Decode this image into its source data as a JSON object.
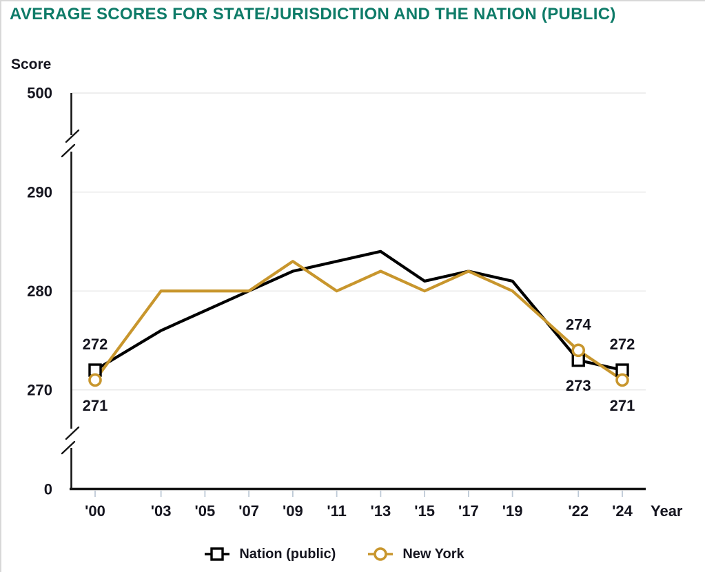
{
  "title": "AVERAGE SCORES FOR STATE/JURISDICTION AND THE NATION (PUBLIC)",
  "colors": {
    "title_accent": "#0e7b68",
    "nation_series": "#000000",
    "state_series": "#c8962d",
    "gridline": "#e9e9e9",
    "axis": "#161616",
    "x_tick_mark": "#bdc9d6",
    "text": "#15151f"
  },
  "chart_data": {
    "type": "line",
    "title": "AVERAGE SCORES FOR STATE/JURISDICTION AND THE NATION (PUBLIC)",
    "ylabel": "Score",
    "xlabel": "Year",
    "x": [
      2000,
      2003,
      2005,
      2007,
      2009,
      2011,
      2013,
      2015,
      2017,
      2019,
      2022,
      2024
    ],
    "x_tick_labels": [
      "'00",
      "'03",
      "'05",
      "'07",
      "'09",
      "'11",
      "'13",
      "'15",
      "'17",
      "'19",
      "'22",
      "'24"
    ],
    "y_ticks": [
      0,
      270,
      280,
      290,
      500
    ],
    "ylim": [
      0,
      500
    ],
    "y_axis_breaks": [
      [
        0,
        270
      ],
      [
        290,
        500
      ]
    ],
    "grid": "horizontal",
    "legend_position": "bottom",
    "marker_x": [
      2000,
      2022,
      2024
    ],
    "series": [
      {
        "name": "Nation (public)",
        "marker": "square",
        "color": "#000000",
        "values": [
          272,
          276,
          278,
          280,
          282,
          283,
          284,
          281,
          282,
          281,
          273,
          272
        ]
      },
      {
        "name": "New York",
        "marker": "circle",
        "color": "#c8962d",
        "values": [
          271,
          280,
          280,
          280,
          283,
          280,
          282,
          280,
          282,
          280,
          274,
          271
        ]
      }
    ],
    "point_labels": [
      {
        "series": "Nation (public)",
        "x": 2000,
        "value": 272,
        "position": "above"
      },
      {
        "series": "New York",
        "x": 2000,
        "value": 271,
        "position": "below"
      },
      {
        "series": "New York",
        "x": 2022,
        "value": 274,
        "position": "above"
      },
      {
        "series": "Nation (public)",
        "x": 2022,
        "value": 273,
        "position": "below"
      },
      {
        "series": "Nation (public)",
        "x": 2024,
        "value": 272,
        "position": "above"
      },
      {
        "series": "New York",
        "x": 2024,
        "value": 271,
        "position": "below"
      }
    ]
  }
}
